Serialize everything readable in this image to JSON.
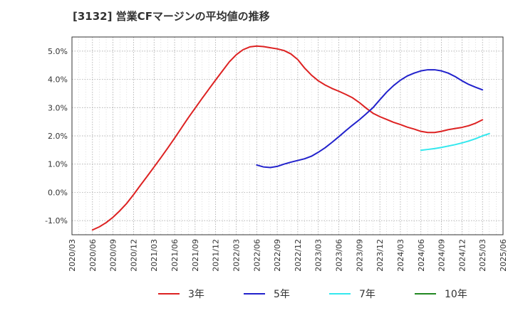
{
  "chart_data": {
    "type": "line",
    "title": "[3132]  営業CFマージンの平均値の推移",
    "xlabel": "",
    "ylabel": "",
    "x_ticks": [
      "2020/03",
      "2020/06",
      "2020/09",
      "2020/12",
      "2021/03",
      "2021/06",
      "2021/09",
      "2021/12",
      "2022/03",
      "2022/06",
      "2022/09",
      "2022/12",
      "2023/03",
      "2023/06",
      "2023/09",
      "2023/12",
      "2024/03",
      "2024/06",
      "2024/09",
      "2024/12",
      "2025/03",
      "2025/06"
    ],
    "y_ticks": [
      "5.0%",
      "4.0%",
      "3.0%",
      "2.0%",
      "1.0%",
      "0.0%",
      "-1.0%"
    ],
    "y_tick_values": [
      5.0,
      4.0,
      3.0,
      2.0,
      1.0,
      0.0,
      -1.0
    ],
    "ylim": [
      -1.5,
      5.5
    ],
    "grid": true,
    "legend_position": "bottom",
    "series": [
      {
        "name": "3年",
        "color": "#dd2222",
        "points": [
          [
            "2020/06",
            -1.33
          ],
          [
            "2020/07",
            -1.22
          ],
          [
            "2020/08",
            -1.07
          ],
          [
            "2020/09",
            -0.88
          ],
          [
            "2020/10",
            -0.65
          ],
          [
            "2020/11",
            -0.39
          ],
          [
            "2020/12",
            -0.08
          ],
          [
            "2021/01",
            0.25
          ],
          [
            "2021/02",
            0.57
          ],
          [
            "2021/03",
            0.9
          ],
          [
            "2021/04",
            1.23
          ],
          [
            "2021/05",
            1.57
          ],
          [
            "2021/06",
            1.92
          ],
          [
            "2021/07",
            2.28
          ],
          [
            "2021/08",
            2.64
          ],
          [
            "2021/09",
            2.98
          ],
          [
            "2021/10",
            3.32
          ],
          [
            "2021/11",
            3.65
          ],
          [
            "2021/12",
            3.98
          ],
          [
            "2022/01",
            4.3
          ],
          [
            "2022/02",
            4.62
          ],
          [
            "2022/03",
            4.87
          ],
          [
            "2022/04",
            5.05
          ],
          [
            "2022/05",
            5.15
          ],
          [
            "2022/06",
            5.18
          ],
          [
            "2022/07",
            5.16
          ],
          [
            "2022/08",
            5.12
          ],
          [
            "2022/09",
            5.08
          ],
          [
            "2022/10",
            5.02
          ],
          [
            "2022/11",
            4.9
          ],
          [
            "2022/12",
            4.7
          ],
          [
            "2023/01",
            4.4
          ],
          [
            "2023/02",
            4.15
          ],
          [
            "2023/03",
            3.95
          ],
          [
            "2023/04",
            3.8
          ],
          [
            "2023/05",
            3.68
          ],
          [
            "2023/06",
            3.58
          ],
          [
            "2023/07",
            3.47
          ],
          [
            "2023/08",
            3.35
          ],
          [
            "2023/09",
            3.18
          ],
          [
            "2023/10",
            2.98
          ],
          [
            "2023/11",
            2.8
          ],
          [
            "2023/12",
            2.68
          ],
          [
            "2024/01",
            2.58
          ],
          [
            "2024/02",
            2.48
          ],
          [
            "2024/03",
            2.4
          ],
          [
            "2024/04",
            2.31
          ],
          [
            "2024/05",
            2.24
          ],
          [
            "2024/06",
            2.16
          ],
          [
            "2024/07",
            2.12
          ],
          [
            "2024/08",
            2.12
          ],
          [
            "2024/09",
            2.16
          ],
          [
            "2024/10",
            2.22
          ],
          [
            "2024/11",
            2.26
          ],
          [
            "2024/12",
            2.3
          ],
          [
            "2025/01",
            2.36
          ],
          [
            "2025/02",
            2.45
          ],
          [
            "2025/03",
            2.57
          ]
        ]
      },
      {
        "name": "5年",
        "color": "#2222cc",
        "points": [
          [
            "2022/06",
            0.97
          ],
          [
            "2022/07",
            0.9
          ],
          [
            "2022/08",
            0.88
          ],
          [
            "2022/09",
            0.92
          ],
          [
            "2022/10",
            1.0
          ],
          [
            "2022/11",
            1.07
          ],
          [
            "2022/12",
            1.13
          ],
          [
            "2023/01",
            1.19
          ],
          [
            "2023/02",
            1.28
          ],
          [
            "2023/03",
            1.42
          ],
          [
            "2023/04",
            1.58
          ],
          [
            "2023/05",
            1.77
          ],
          [
            "2023/06",
            1.97
          ],
          [
            "2023/07",
            2.18
          ],
          [
            "2023/08",
            2.38
          ],
          [
            "2023/09",
            2.57
          ],
          [
            "2023/10",
            2.78
          ],
          [
            "2023/11",
            3.0
          ],
          [
            "2023/12",
            3.28
          ],
          [
            "2024/01",
            3.55
          ],
          [
            "2024/02",
            3.78
          ],
          [
            "2024/03",
            3.97
          ],
          [
            "2024/04",
            4.12
          ],
          [
            "2024/05",
            4.22
          ],
          [
            "2024/06",
            4.3
          ],
          [
            "2024/07",
            4.34
          ],
          [
            "2024/08",
            4.34
          ],
          [
            "2024/09",
            4.3
          ],
          [
            "2024/10",
            4.22
          ],
          [
            "2024/11",
            4.1
          ],
          [
            "2024/12",
            3.95
          ],
          [
            "2025/01",
            3.82
          ],
          [
            "2025/02",
            3.72
          ],
          [
            "2025/03",
            3.63
          ]
        ]
      },
      {
        "name": "7年",
        "color": "#33e8ee",
        "points": [
          [
            "2024/06",
            1.49
          ],
          [
            "2024/07",
            1.52
          ],
          [
            "2024/08",
            1.55
          ],
          [
            "2024/09",
            1.59
          ],
          [
            "2024/10",
            1.64
          ],
          [
            "2024/11",
            1.69
          ],
          [
            "2024/12",
            1.75
          ],
          [
            "2025/01",
            1.82
          ],
          [
            "2025/02",
            1.9
          ],
          [
            "2025/03",
            2.0
          ],
          [
            "2025/04",
            2.08
          ]
        ]
      },
      {
        "name": "10年",
        "color": "#228822",
        "points": []
      }
    ]
  }
}
